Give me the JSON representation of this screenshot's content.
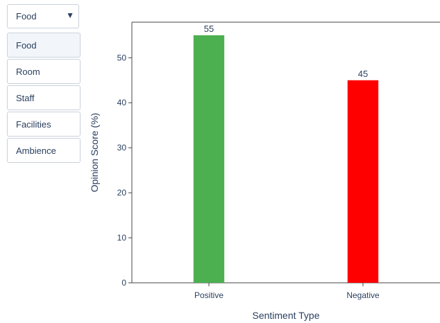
{
  "filter": {
    "selected": "Food",
    "options": [
      "Food",
      "Room",
      "Staff",
      "Facilities",
      "Ambience"
    ],
    "active_index": 0
  },
  "chart_data": {
    "type": "bar",
    "categories": [
      "Positive",
      "Negative"
    ],
    "values": [
      55,
      45
    ],
    "colors": [
      "#4caf50",
      "#ff0000"
    ],
    "title": "",
    "xlabel": "Sentiment Type",
    "ylabel": "Opinion Score (%)",
    "ylim": [
      0,
      57.9
    ],
    "yticks": [
      0,
      10,
      20,
      30,
      40,
      50
    ],
    "grid": false,
    "data_labels": true
  }
}
